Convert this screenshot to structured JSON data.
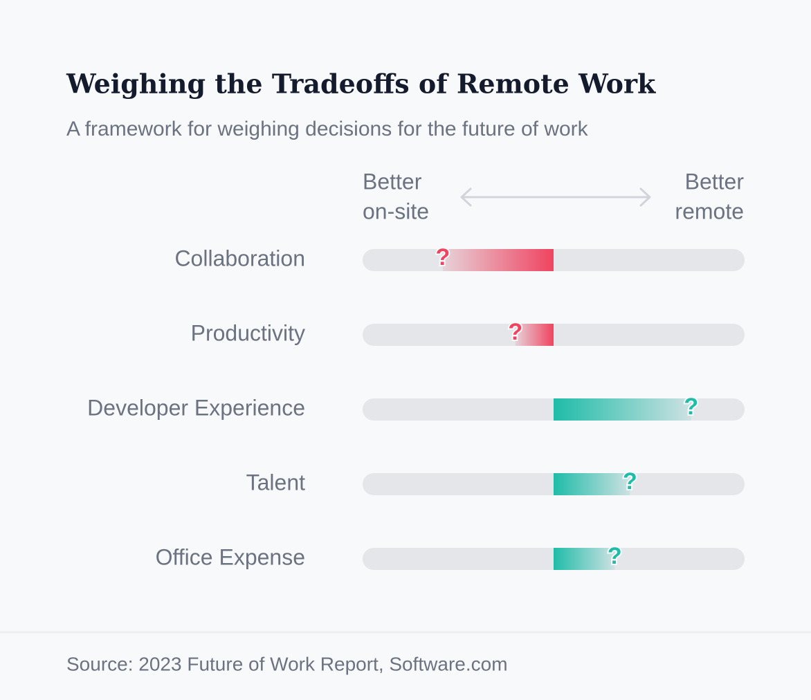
{
  "chart_data": {
    "type": "diverging-bar",
    "title": "Weighing the Tradeoffs of Remote Work",
    "subtitle": "A framework for weighing decisions for the future of work",
    "left_label": [
      "Better",
      "on-site"
    ],
    "right_label": [
      "Better",
      "remote"
    ],
    "categories": [
      "Collaboration",
      "Productivity",
      "Developer Experience",
      "Talent",
      "Office Expense"
    ],
    "values": [
      -58,
      -20,
      72,
      40,
      32
    ],
    "xlim": [
      -100,
      100
    ],
    "marker_label": "?",
    "negative_color": "#f0435f",
    "positive_color": "#1fbca8",
    "track_color": "#e5e6ea",
    "source": "Source: 2023 Future of Work Report, Software.com"
  }
}
